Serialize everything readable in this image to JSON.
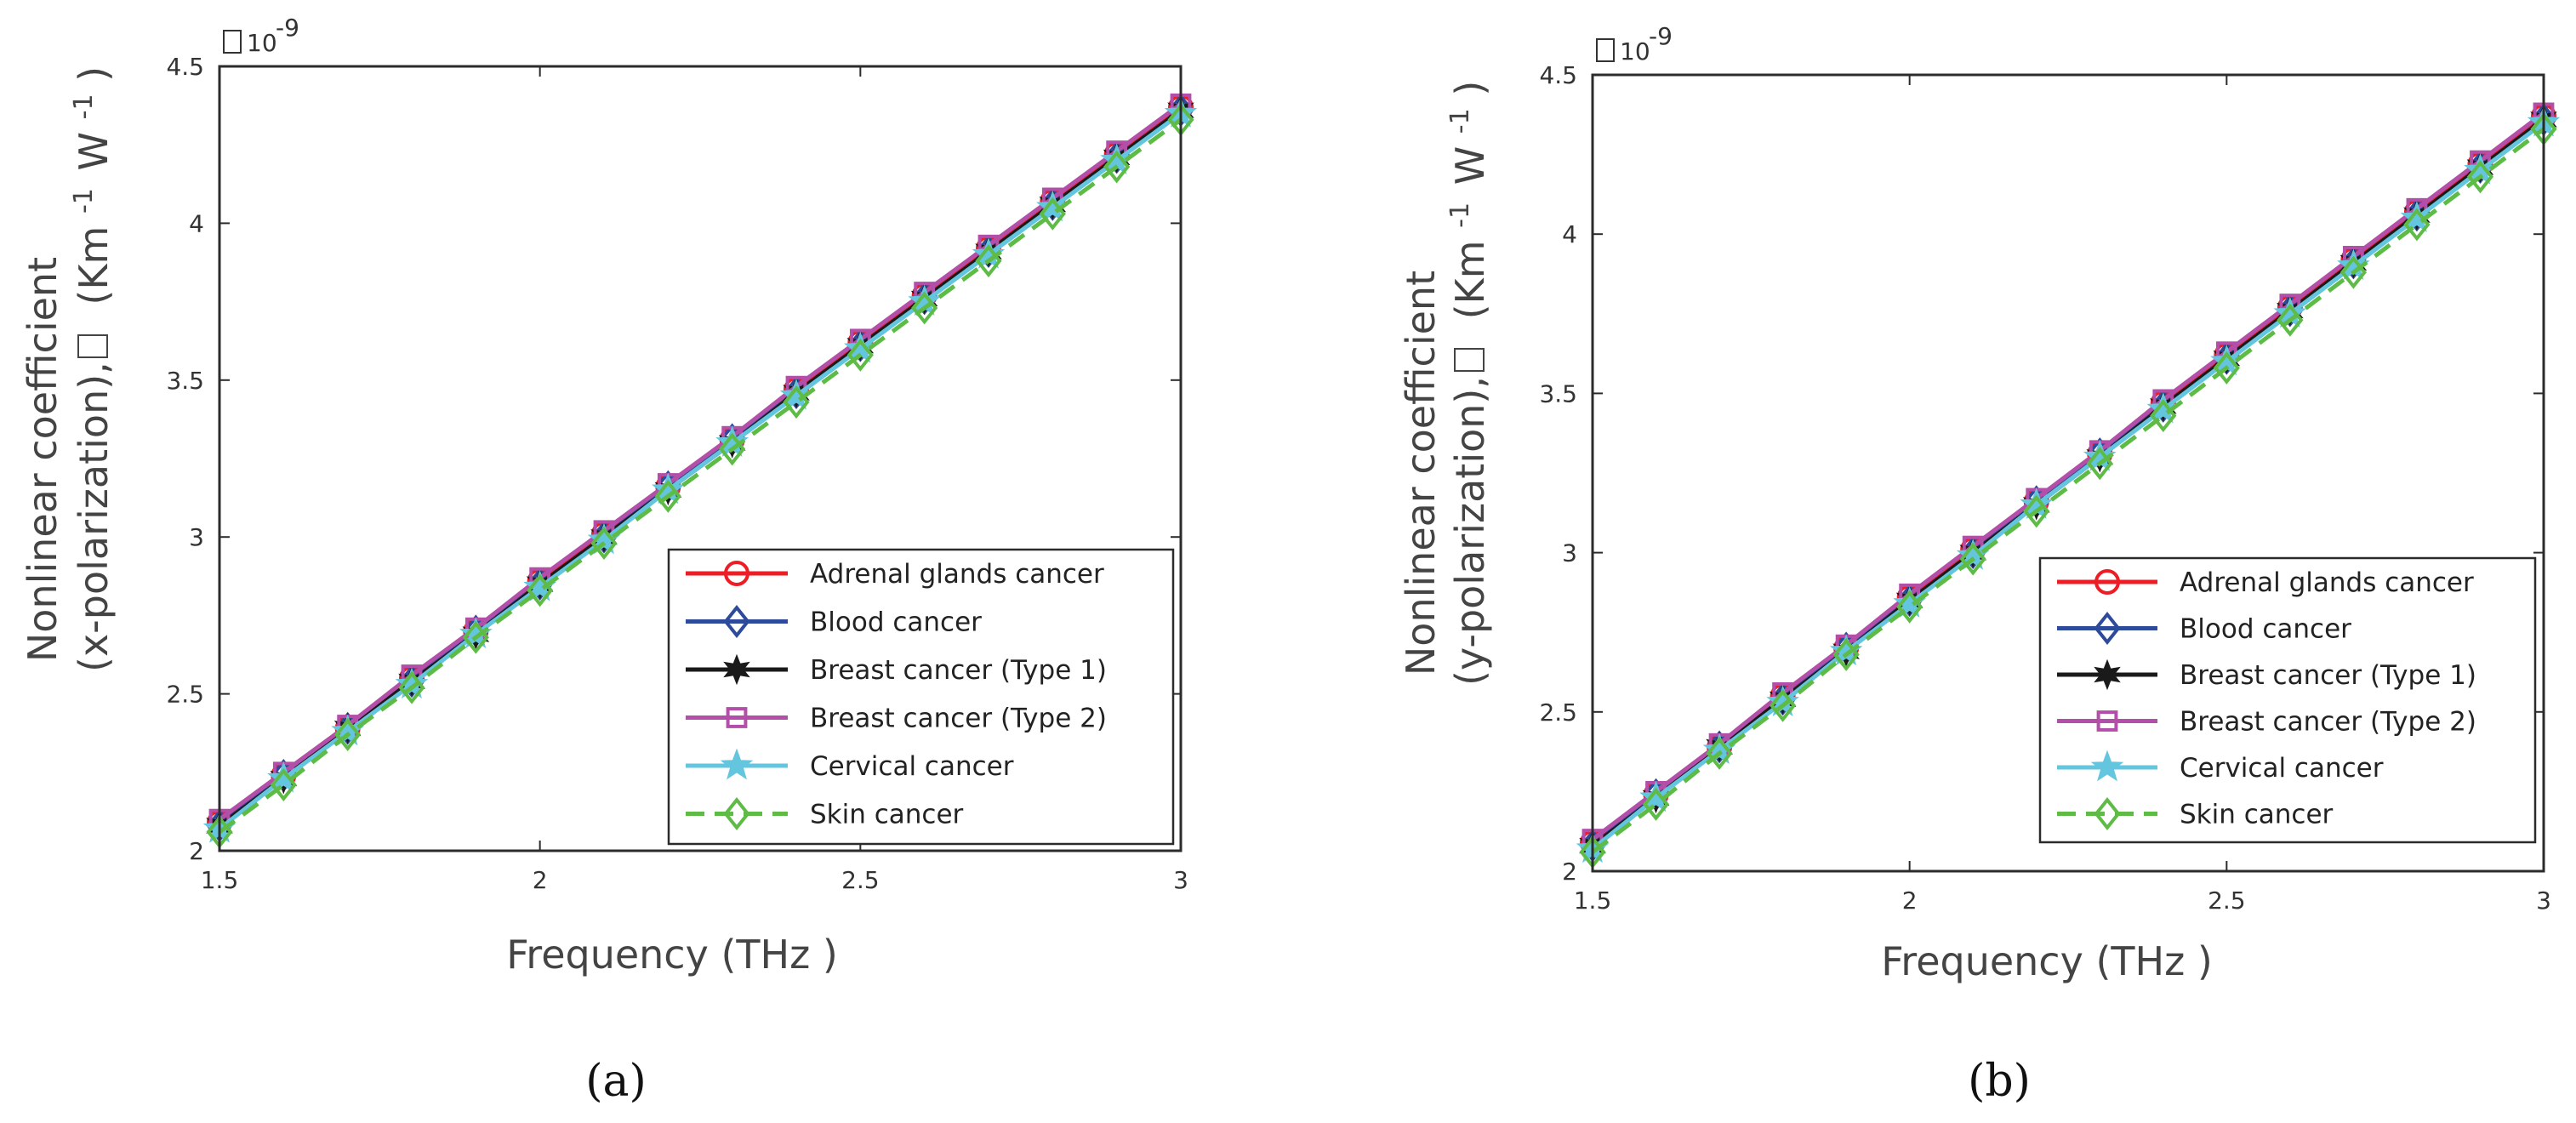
{
  "panels": [
    {
      "caption": "(a)",
      "exponent_base": "10",
      "exponent_power": "-9",
      "xlabel": "Frequency (THz )",
      "ylabel_line1": "Nonlinear coefficient",
      "ylabel_line2_pre": "(x-polarization),",
      "ylabel_unit": "(Km",
      "ylabel_unit_sup1": "-1",
      "ylabel_unit_mid": "W",
      "ylabel_unit_sup2": "-1",
      "ylabel_unit_end": ")",
      "glyph": "□",
      "ytick_labels": [
        "2",
        "2.5",
        "3",
        "3.5",
        "4",
        "4.5"
      ],
      "xtick_labels": [
        "1.5",
        "2",
        "2.5",
        "3"
      ]
    },
    {
      "caption": "(b)",
      "exponent_base": "10",
      "exponent_power": "-9",
      "xlabel": "Frequency (THz )",
      "ylabel_line1": "Nonlinear coefficient",
      "ylabel_line2_pre": "(y-polarization),",
      "ylabel_unit": "(Km",
      "ylabel_unit_sup1": "-1",
      "ylabel_unit_mid": "W",
      "ylabel_unit_sup2": "-1",
      "ylabel_unit_end": ")",
      "glyph": "□",
      "ytick_labels": [
        "2",
        "2.5",
        "3",
        "3.5",
        "4",
        "4.5"
      ],
      "xtick_labels": [
        "1.5",
        "2",
        "2.5",
        "3"
      ]
    }
  ],
  "chart_data": [
    {
      "type": "line",
      "xlabel": "Frequency (THz )",
      "ylabel": "Nonlinear coefficient (x-polarization), (Km -1 W -1)",
      "y_exponent": "10^-9",
      "xlim": [
        1.5,
        3
      ],
      "ylim": [
        2e-09,
        4.5e-09
      ],
      "grid": false,
      "legend_position": "bottom-right",
      "x": [
        1.5,
        1.6,
        1.7,
        1.8,
        1.9,
        2.0,
        2.1,
        2.2,
        2.3,
        2.4,
        2.5,
        2.6,
        2.7,
        2.8,
        2.9,
        3.0
      ],
      "series": [
        {
          "name": "Adrenal glands cancer",
          "color": "#ee1c25",
          "marker": "circle",
          "dash": "solid",
          "values": [
            2.09e-09,
            2.24e-09,
            2.39e-09,
            2.55e-09,
            2.7e-09,
            2.86e-09,
            3.01e-09,
            3.16e-09,
            3.31e-09,
            3.47e-09,
            3.62e-09,
            3.77e-09,
            3.92e-09,
            4.07e-09,
            4.22e-09,
            4.37e-09
          ]
        },
        {
          "name": "Blood cancer",
          "color": "#2e4b9b",
          "marker": "diamond",
          "dash": "solid",
          "values": [
            2.08e-09,
            2.24e-09,
            2.39e-09,
            2.54e-09,
            2.7e-09,
            2.85e-09,
            3e-09,
            3.16e-09,
            3.31e-09,
            3.46e-09,
            3.61e-09,
            3.76e-09,
            3.91e-09,
            4.06e-09,
            4.21e-09,
            4.36e-09
          ]
        },
        {
          "name": "Breast cancer (Type 1)",
          "color": "#1a1a1a",
          "marker": "hexagram",
          "dash": "solid",
          "values": [
            2.08e-09,
            2.23e-09,
            2.39e-09,
            2.54e-09,
            2.69e-09,
            2.85e-09,
            3e-09,
            3.15e-09,
            3.3e-09,
            3.46e-09,
            3.61e-09,
            3.76e-09,
            3.91e-09,
            4.06e-09,
            4.21e-09,
            4.36e-09
          ]
        },
        {
          "name": "Breast cancer (Type 2)",
          "color": "#b34fa8",
          "marker": "square",
          "dash": "solid",
          "values": [
            2.1e-09,
            2.25e-09,
            2.4e-09,
            2.56e-09,
            2.71e-09,
            2.87e-09,
            3.02e-09,
            3.17e-09,
            3.32e-09,
            3.48e-09,
            3.63e-09,
            3.78e-09,
            3.93e-09,
            4.08e-09,
            4.23e-09,
            4.38e-09
          ]
        },
        {
          "name": "Cervical cancer",
          "color": "#63c5de",
          "marker": "pentagram",
          "dash": "solid",
          "values": [
            2.07e-09,
            2.23e-09,
            2.38e-09,
            2.53e-09,
            2.69e-09,
            2.84e-09,
            2.99e-09,
            3.15e-09,
            3.3e-09,
            3.45e-09,
            3.6e-09,
            3.75e-09,
            3.9e-09,
            4.05e-09,
            4.2e-09,
            4.35e-09
          ]
        },
        {
          "name": "Skin cancer",
          "color": "#5dbb46",
          "marker": "diamond",
          "dash": "dashed",
          "values": [
            2.06e-09,
            2.21e-09,
            2.37e-09,
            2.52e-09,
            2.68e-09,
            2.83e-09,
            2.98e-09,
            3.13e-09,
            3.28e-09,
            3.43e-09,
            3.58e-09,
            3.73e-09,
            3.88e-09,
            4.03e-09,
            4.18e-09,
            4.33e-09
          ]
        }
      ]
    },
    {
      "type": "line",
      "xlabel": "Frequency (THz )",
      "ylabel": "Nonlinear coefficient (y-polarization), (Km -1 W -1)",
      "y_exponent": "10^-9",
      "xlim": [
        1.5,
        3
      ],
      "ylim": [
        2e-09,
        4.5e-09
      ],
      "grid": false,
      "legend_position": "bottom-right",
      "x": [
        1.5,
        1.6,
        1.7,
        1.8,
        1.9,
        2.0,
        2.1,
        2.2,
        2.3,
        2.4,
        2.5,
        2.6,
        2.7,
        2.8,
        2.9,
        3.0
      ],
      "series": [
        {
          "name": "Adrenal glands cancer",
          "color": "#ee1c25",
          "marker": "circle",
          "dash": "solid",
          "values": [
            2.09e-09,
            2.24e-09,
            2.39e-09,
            2.55e-09,
            2.7e-09,
            2.86e-09,
            3.01e-09,
            3.16e-09,
            3.31e-09,
            3.47e-09,
            3.62e-09,
            3.77e-09,
            3.92e-09,
            4.07e-09,
            4.22e-09,
            4.37e-09
          ]
        },
        {
          "name": "Blood cancer",
          "color": "#2e4b9b",
          "marker": "diamond",
          "dash": "solid",
          "values": [
            2.08e-09,
            2.24e-09,
            2.39e-09,
            2.54e-09,
            2.7e-09,
            2.85e-09,
            3e-09,
            3.16e-09,
            3.31e-09,
            3.46e-09,
            3.61e-09,
            3.76e-09,
            3.91e-09,
            4.06e-09,
            4.21e-09,
            4.36e-09
          ]
        },
        {
          "name": "Breast cancer (Type 1)",
          "color": "#1a1a1a",
          "marker": "hexagram",
          "dash": "solid",
          "values": [
            2.08e-09,
            2.23e-09,
            2.39e-09,
            2.54e-09,
            2.69e-09,
            2.85e-09,
            3e-09,
            3.15e-09,
            3.3e-09,
            3.46e-09,
            3.61e-09,
            3.76e-09,
            3.91e-09,
            4.06e-09,
            4.21e-09,
            4.36e-09
          ]
        },
        {
          "name": "Breast cancer (Type 2)",
          "color": "#b34fa8",
          "marker": "square",
          "dash": "solid",
          "values": [
            2.1e-09,
            2.25e-09,
            2.4e-09,
            2.56e-09,
            2.71e-09,
            2.87e-09,
            3.02e-09,
            3.17e-09,
            3.32e-09,
            3.48e-09,
            3.63e-09,
            3.78e-09,
            3.93e-09,
            4.08e-09,
            4.23e-09,
            4.38e-09
          ]
        },
        {
          "name": "Cervical cancer",
          "color": "#63c5de",
          "marker": "pentagram",
          "dash": "solid",
          "values": [
            2.07e-09,
            2.23e-09,
            2.38e-09,
            2.53e-09,
            2.69e-09,
            2.84e-09,
            2.99e-09,
            3.15e-09,
            3.3e-09,
            3.45e-09,
            3.6e-09,
            3.75e-09,
            3.9e-09,
            4.05e-09,
            4.2e-09,
            4.35e-09
          ]
        },
        {
          "name": "Skin cancer",
          "color": "#5dbb46",
          "marker": "diamond",
          "dash": "dashed",
          "values": [
            2.06e-09,
            2.21e-09,
            2.37e-09,
            2.52e-09,
            2.68e-09,
            2.83e-09,
            2.98e-09,
            3.13e-09,
            3.28e-09,
            3.43e-09,
            3.58e-09,
            3.73e-09,
            3.88e-09,
            4.03e-09,
            4.18e-09,
            4.33e-09
          ]
        }
      ]
    }
  ]
}
